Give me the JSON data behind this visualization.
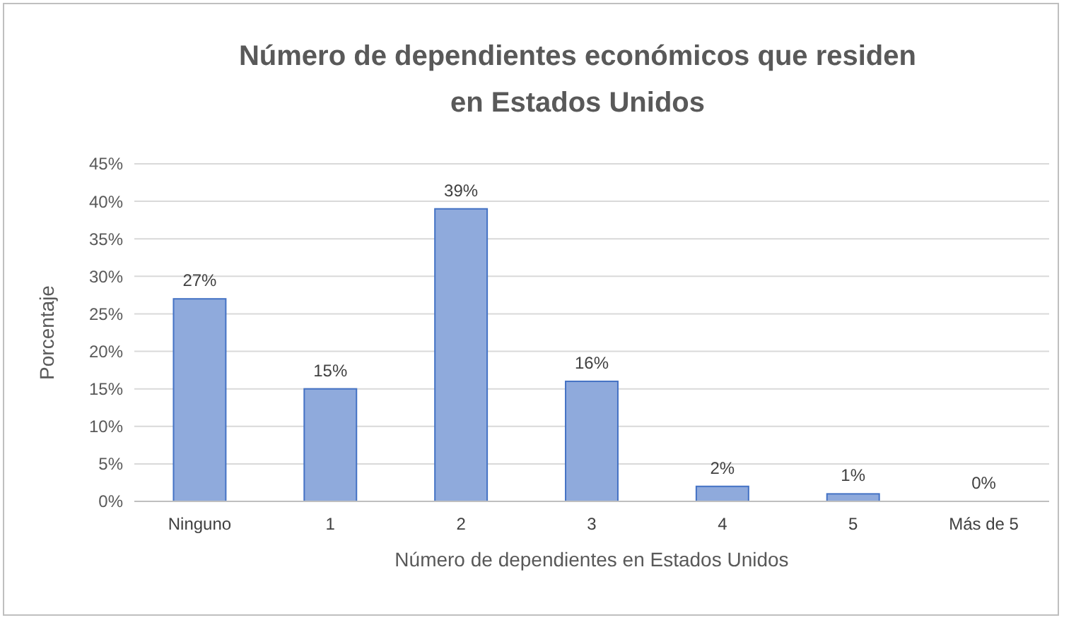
{
  "chart_data": {
    "type": "bar",
    "title": "Número de dependientes económicos que residen en Estados Unidos",
    "xlabel": "Número de dependientes en Estados Unidos",
    "ylabel": "Porcentaje",
    "categories": [
      "Ninguno",
      "1",
      "2",
      "3",
      "4",
      "5",
      "Más de 5"
    ],
    "values": [
      27,
      15,
      39,
      16,
      2,
      1,
      0
    ],
    "color": "#8faadc",
    "ylim": [
      0,
      45
    ],
    "yticks": [
      {
        "value": 0,
        "label": "0%"
      },
      {
        "value": 5,
        "label": "5%"
      },
      {
        "value": 10,
        "label": "10%"
      },
      {
        "value": 15,
        "label": "15%"
      },
      {
        "value": 20,
        "label": "20%"
      },
      {
        "value": 25,
        "label": "25%"
      },
      {
        "value": 30,
        "label": "30%"
      },
      {
        "value": 35,
        "label": "35%"
      },
      {
        "value": 40,
        "label": "40%"
      },
      {
        "value": 45,
        "label": "45%"
      }
    ],
    "value_labels": [
      "27%",
      "15%",
      "39%",
      "16%",
      "2%",
      "1%",
      "0%"
    ],
    "grid": "y"
  }
}
